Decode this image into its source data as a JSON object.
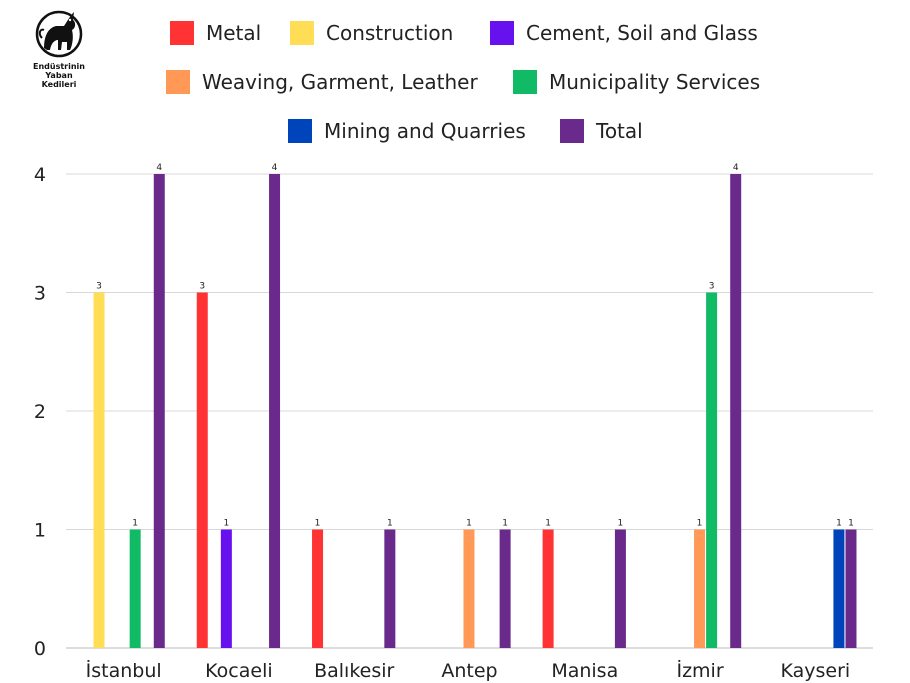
{
  "logo": {
    "name": "cat-logo-icon",
    "lines": [
      "Endüstrinin",
      "Yaban",
      "Kedileri"
    ]
  },
  "legend": [
    {
      "label": "Metal",
      "color": "#ff3333"
    },
    {
      "label": "Construction",
      "color": "#ffdd55"
    },
    {
      "label": "Cement, Soil and Glass",
      "color": "#6611ee"
    },
    {
      "label": "Weaving, Garment, Leather",
      "color": "#ff9955"
    },
    {
      "label": "Municipality Services",
      "color": "#11bb66"
    },
    {
      "label": "Mining and Quarries",
      "color": "#0044bb"
    },
    {
      "label": "Total",
      "color": "#6a2a8c"
    }
  ],
  "chart_data": {
    "type": "bar",
    "categories": [
      "İstanbul",
      "Kocaeli",
      "Balıkesir",
      "Antep",
      "Manisa",
      "İzmir",
      "Kayseri"
    ],
    "ylim": [
      0,
      4
    ],
    "yticks": [
      0,
      1,
      2,
      3,
      4
    ],
    "grid": true,
    "legend_position": "top",
    "series": [
      {
        "name": "Metal",
        "color": "#ff3333",
        "values": [
          0,
          3,
          1,
          0,
          1,
          0,
          0
        ]
      },
      {
        "name": "Construction",
        "color": "#ffdd55",
        "values": [
          3,
          0,
          0,
          0,
          0,
          0,
          0
        ]
      },
      {
        "name": "Cement, Soil and Glass",
        "color": "#6611ee",
        "values": [
          0,
          1,
          0,
          0,
          0,
          0,
          0
        ]
      },
      {
        "name": "Weaving, Garment, Leather",
        "color": "#ff9955",
        "values": [
          0,
          0,
          0,
          1,
          0,
          1,
          0
        ]
      },
      {
        "name": "Municipality Services",
        "color": "#11bb66",
        "values": [
          1,
          0,
          0,
          0,
          0,
          3,
          0
        ]
      },
      {
        "name": "Mining and Quarries",
        "color": "#0044bb",
        "values": [
          0,
          0,
          0,
          0,
          0,
          0,
          1
        ]
      },
      {
        "name": "Total",
        "color": "#6a2a8c",
        "values": [
          4,
          4,
          1,
          1,
          1,
          4,
          1
        ]
      }
    ]
  }
}
